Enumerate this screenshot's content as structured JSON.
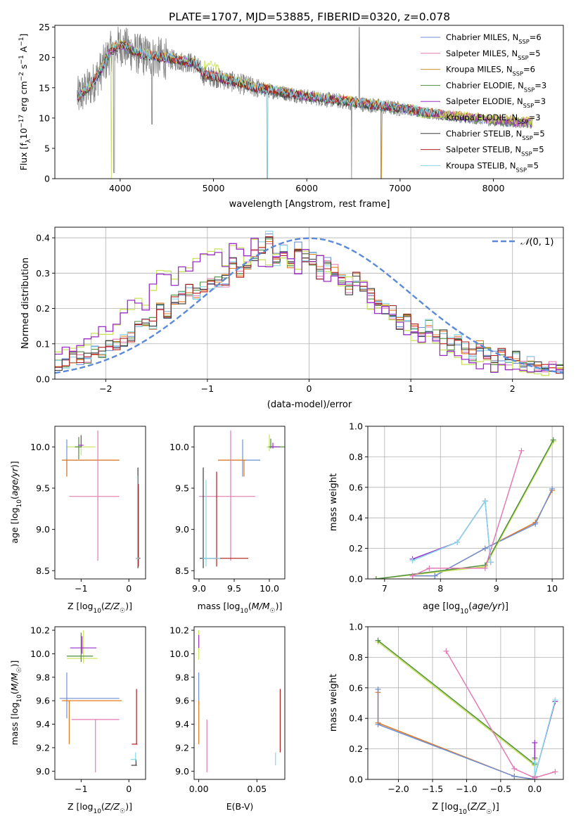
{
  "title": "PLATE=1707, MJD=53885, FIBERID=0320, z=0.078",
  "colors": {
    "chabrier_miles": "#6f8fd4",
    "salpeter_miles": "#e37bb5",
    "kroupa_miles": "#c8902a",
    "chabrier_elodie": "#4f8f3f",
    "salpeter_elodie": "#9a2fc8",
    "kroupa_elodie": "#c9e25a",
    "chabrier_stelib": "#3b3b3b",
    "salpeter_stelib": "#b01e1e",
    "kroupa_stelib": "#86d8e8",
    "data": "#808080",
    "orange": "#e07b20",
    "normal": "#5b8ad8"
  },
  "chart_data": [
    {
      "id": "spectrum",
      "type": "line",
      "xlabel": "wavelength [Angstrom, rest frame]",
      "ylabel": "Flux [f_λ10^-17 erg cm^-2 s^-1 A^-1]",
      "xlim": [
        3300,
        8750
      ],
      "ylim": [
        0,
        25.3
      ],
      "xticks": [
        "4000",
        "5000",
        "6000",
        "7000",
        "8000"
      ],
      "yticks": [
        "0",
        "5",
        "10",
        "15",
        "20",
        "25"
      ],
      "legend": [
        "Chabrier MILES, N_SSP=6",
        "Salpeter MILES, N_SSP=5",
        "Kroupa MILES, N_SSP=6",
        "Chabrier ELODIE, N_SSP=3",
        "Salpeter ELODIE, N_SSP=3",
        "Kroupa ELODIE, N_SSP=3",
        "Chabrier STELIB, N_SSP=5",
        "Salpeter STELIB, N_SSP=5",
        "Kroupa STELIB, N_SSP=5"
      ],
      "legend_loc": "top-right",
      "continuum": [
        [
          3550,
          13.5
        ],
        [
          3700,
          15.5
        ],
        [
          3800,
          18
        ],
        [
          3900,
          21
        ],
        [
          4000,
          22
        ],
        [
          4200,
          20.5
        ],
        [
          4400,
          20
        ],
        [
          4600,
          19.5
        ],
        [
          4800,
          19
        ],
        [
          4900,
          17
        ],
        [
          5000,
          16.8
        ],
        [
          5500,
          14.8
        ],
        [
          6000,
          13.5
        ],
        [
          6500,
          12.5
        ],
        [
          7000,
          11.5
        ],
        [
          7400,
          10.5
        ],
        [
          8000,
          9.5
        ],
        [
          8500,
          9
        ]
      ]
    },
    {
      "id": "residuals",
      "type": "line",
      "xlabel": "(data-model)/error",
      "ylabel": "Normed distribution",
      "xlim": [
        -2.5,
        2.5
      ],
      "ylim": [
        0,
        0.43
      ],
      "xticks": [
        "−2",
        "−1",
        "0",
        "1",
        "2"
      ],
      "yticks": [
        "0.0",
        "0.1",
        "0.2",
        "0.3",
        "0.4"
      ],
      "legend": [
        "𝒩(0, 1)"
      ],
      "legend_loc": "top-right",
      "hist_a": [
        0.08,
        0.08,
        0.09,
        0.09,
        0.11,
        0.12,
        0.14,
        0.13,
        0.16,
        0.19,
        0.21,
        0.22,
        0.2,
        0.26,
        0.3,
        0.3,
        0.28,
        0.31,
        0.3,
        0.33,
        0.35,
        0.36,
        0.36,
        0.33,
        0.38,
        0.37,
        0.34,
        0.4,
        0.33,
        0.31,
        0.36,
        0.35,
        0.33,
        0.3,
        0.36,
        0.32,
        0.34,
        0.29,
        0.3,
        0.27,
        0.28,
        0.26,
        0.27,
        0.21,
        0.19,
        0.21,
        0.17,
        0.17,
        0.14,
        0.12,
        0.1,
        0.13,
        0.1,
        0.07,
        0.07,
        0.07,
        0.05,
        0.05,
        0.04,
        0.04,
        0.03,
        0.03,
        0.03,
        0.04,
        0.03,
        0.02,
        0.02,
        0.02,
        0.03,
        0.02
      ],
      "hist_b": [
        0.04,
        0.05,
        0.06,
        0.06,
        0.06,
        0.08,
        0.08,
        0.09,
        0.1,
        0.11,
        0.12,
        0.16,
        0.17,
        0.16,
        0.21,
        0.19,
        0.22,
        0.23,
        0.25,
        0.24,
        0.26,
        0.27,
        0.28,
        0.28,
        0.33,
        0.3,
        0.32,
        0.35,
        0.37,
        0.4,
        0.34,
        0.36,
        0.33,
        0.37,
        0.35,
        0.34,
        0.3,
        0.33,
        0.31,
        0.28,
        0.25,
        0.29,
        0.26,
        0.24,
        0.22,
        0.2,
        0.19,
        0.16,
        0.17,
        0.15,
        0.14,
        0.15,
        0.12,
        0.12,
        0.1,
        0.11,
        0.09,
        0.07,
        0.09,
        0.07,
        0.06,
        0.07,
        0.05,
        0.06,
        0.04,
        0.05,
        0.04,
        0.03,
        0.04,
        0.03
      ]
    },
    {
      "id": "age_vs_Z",
      "type": "scatter",
      "xlabel": "Z [log10(Z/Z☉)]",
      "ylabel": "age  [log10(age/yr)]",
      "xlim": [
        -1.55,
        0.35
      ],
      "ylim": [
        8.4,
        10.25
      ],
      "xticks": [
        "−1",
        "0"
      ],
      "yticks": [
        "8.5",
        "9.0",
        "9.5",
        "10.0"
      ]
    },
    {
      "id": "age_vs_mass",
      "type": "scatter",
      "xlabel": "mass [log10(M/M☉)]",
      "ylabel": "",
      "xlim": [
        8.93,
        10.22
      ],
      "ylim": [
        8.4,
        10.25
      ],
      "xticks": [
        "9.0",
        "9.5",
        "10.0"
      ],
      "yticks": [
        "8.5",
        "9.0",
        "9.5",
        "10.0"
      ]
    },
    {
      "id": "weight_vs_age",
      "type": "line",
      "xlabel": "age  [log10(age/yr)]",
      "ylabel": "mass weight",
      "xlim": [
        6.7,
        10.2
      ],
      "ylim": [
        0,
        1
      ],
      "xticks": [
        "7",
        "8",
        "9",
        "10"
      ],
      "yticks": [
        "0.0",
        "0.2",
        "0.4",
        "0.6",
        "0.8",
        "1.0"
      ]
    },
    {
      "id": "mass_vs_Z",
      "type": "scatter",
      "xlabel": "Z [log10(Z/Z☉)]",
      "ylabel": "mass [log10(M/M☉)]",
      "xlim": [
        -1.55,
        0.35
      ],
      "ylim": [
        8.93,
        10.23
      ],
      "xticks": [
        "−1",
        "0"
      ],
      "yticks": [
        "9.0",
        "9.2",
        "9.4",
        "9.6",
        "9.8",
        "10.0",
        "10.2"
      ]
    },
    {
      "id": "mass_vs_ebv",
      "type": "scatter",
      "xlabel": "E(B-V)",
      "ylabel": "",
      "xlim": [
        -0.004,
        0.074
      ],
      "ylim": [
        8.93,
        10.23
      ],
      "xticks": [
        "0.00",
        "0.05"
      ],
      "yticks": [
        "9.0",
        "9.2",
        "9.4",
        "9.6",
        "9.8",
        "10.0",
        "10.2"
      ]
    },
    {
      "id": "weight_vs_Z",
      "type": "line",
      "xlabel": "Z [log10(Z/Z☉)]",
      "ylabel": "mass weight",
      "xlim": [
        -2.45,
        0.42
      ],
      "ylim": [
        0,
        1
      ],
      "xticks": [
        "−2.0",
        "−1.5",
        "−1.0",
        "−0.5",
        "0.0"
      ],
      "yticks": [
        "0.0",
        "0.2",
        "0.4",
        "0.6",
        "0.8",
        "1.0"
      ]
    }
  ]
}
